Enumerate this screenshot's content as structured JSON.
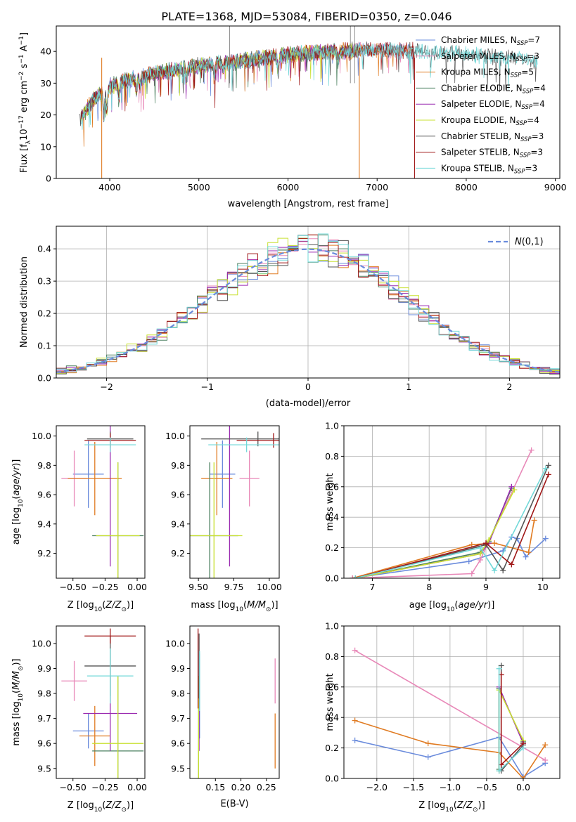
{
  "figure_title": "PLATE=1368, MJD=53084, FIBERID=0350, z=0.046",
  "colors": {
    "blue": "#6a8bdc",
    "orange": "#e07b22",
    "green": "#4c8060",
    "purple": "#9a2ab0",
    "yellowgreen": "#c8e030",
    "gray": "#555555",
    "darkred": "#a01818",
    "cyan": "#72d8d8",
    "pink": "#e888b8",
    "normal": "#6a8bdc"
  },
  "chart_data": [
    {
      "id": "spectrum",
      "type": "line",
      "title": "PLATE=1368, MJD=53084, FIBERID=0350, z=0.046",
      "xlabel": "wavelength [Angstrom, rest frame]",
      "ylabel": "Flux [f_λ10^-17 erg cm^-2 s^-1 A^-1]",
      "xlim": [
        3400,
        9050
      ],
      "ylim": [
        0,
        48
      ],
      "xticks": [
        4000,
        5000,
        6000,
        7000,
        8000,
        9000
      ],
      "yticks": [
        0,
        10,
        20,
        30,
        40
      ],
      "grid": false,
      "legend_position": "top-right",
      "legend": [
        {
          "label": "Chabrier MILES, N",
          "sub": "SSP",
          "suffix": "=7",
          "color": "blue"
        },
        {
          "label": "Salpeter MILES, N",
          "sub": "SSP",
          "suffix": "=3",
          "color": "pink"
        },
        {
          "label": "Kroupa MILES, N",
          "sub": "SSP",
          "suffix": "=5",
          "color": "orange"
        },
        {
          "label": "Chabrier ELODIE, N",
          "sub": "SSP",
          "suffix": "=4",
          "color": "green"
        },
        {
          "label": "Salpeter ELODIE, N",
          "sub": "SSP",
          "suffix": "=4",
          "color": "purple"
        },
        {
          "label": "Kroupa ELODIE, N",
          "sub": "SSP",
          "suffix": "=4",
          "color": "yellowgreen"
        },
        {
          "label": "Chabrier STELIB, N",
          "sub": "SSP",
          "suffix": "=3",
          "color": "gray"
        },
        {
          "label": "Salpeter STELIB, N",
          "sub": "SSP",
          "suffix": "=3",
          "color": "darkred"
        },
        {
          "label": "Kroupa STELIB, N",
          "sub": "SSP",
          "suffix": "=3",
          "color": "cyan"
        }
      ],
      "continuum": [
        [
          3650,
          17
        ],
        [
          3700,
          20
        ],
        [
          3800,
          24
        ],
        [
          3900,
          27
        ],
        [
          4000,
          29
        ],
        [
          4200,
          31
        ],
        [
          4500,
          33
        ],
        [
          5000,
          35.5
        ],
        [
          5500,
          37
        ],
        [
          6000,
          39
        ],
        [
          6500,
          40
        ],
        [
          7000,
          40.5
        ],
        [
          7500,
          40
        ],
        [
          8000,
          39
        ],
        [
          8500,
          38
        ],
        [
          8800,
          37
        ]
      ],
      "series": [
        {
          "name": "Chabrier MILES",
          "color": "blue",
          "range": [
            3680,
            7400
          ]
        },
        {
          "name": "Salpeter MILES",
          "color": "pink",
          "range": [
            3680,
            7400
          ]
        },
        {
          "name": "Kroupa MILES",
          "color": "orange",
          "range": [
            3680,
            7400
          ]
        },
        {
          "name": "Chabrier ELODIE",
          "color": "green",
          "range": [
            3680,
            6800
          ]
        },
        {
          "name": "Salpeter ELODIE",
          "color": "purple",
          "range": [
            3680,
            6800
          ]
        },
        {
          "name": "Kroupa ELODIE",
          "color": "yellowgreen",
          "range": [
            3680,
            6800
          ]
        },
        {
          "name": "Chabrier STELIB",
          "color": "gray",
          "range": [
            3660,
            8800
          ]
        },
        {
          "name": "Salpeter STELIB",
          "color": "darkred",
          "range": [
            3680,
            7420
          ]
        },
        {
          "name": "Kroupa STELIB",
          "color": "cyan",
          "range": [
            3680,
            8800
          ]
        }
      ],
      "cutoffs": [
        {
          "x": 3910,
          "color": "orange"
        },
        {
          "x": 6800,
          "color": "orange"
        },
        {
          "x": 7420,
          "color": "darkred"
        }
      ]
    },
    {
      "id": "residuals",
      "type": "histogram",
      "xlabel": "(data-model)/error",
      "ylabel": "Normed distribution",
      "xlim": [
        -2.5,
        2.5
      ],
      "ylim": [
        0,
        0.47
      ],
      "xticks": [
        -2,
        -1,
        0,
        1,
        2
      ],
      "yticks": [
        0.0,
        0.1,
        0.2,
        0.3,
        0.4
      ],
      "grid": true,
      "bin_width": 0.1,
      "legend_position": "top-right",
      "normal_label": "N(0,1)",
      "series_colors": [
        "blue",
        "pink",
        "orange",
        "green",
        "purple",
        "yellowgreen",
        "gray",
        "darkred",
        "cyan"
      ]
    },
    {
      "id": "age_vs_Z",
      "type": "errorbar",
      "xlabel": "Z [log10(Z/Z⊙)]",
      "ylabel": "age [log10(age/yr)]",
      "xlim": [
        -0.63,
        0.06
      ],
      "ylim": [
        9.03,
        10.07
      ],
      "xticks": [
        -0.5,
        -0.25,
        0.0
      ],
      "ytickvals": [
        9.2,
        9.4,
        9.6,
        9.8,
        10.0
      ],
      "grid": false,
      "points": [
        {
          "color": "blue",
          "x": -0.38,
          "xerr": 0.12,
          "y": 9.74,
          "yerr": 0.23
        },
        {
          "color": "pink",
          "x": -0.49,
          "xerr": 0.1,
          "y": 9.71,
          "yerr": 0.19
        },
        {
          "color": "orange",
          "x": -0.33,
          "xerr": 0.21,
          "y": 9.71,
          "yerr": 0.25
        },
        {
          "color": "green",
          "x": -0.15,
          "xerr": 0.2,
          "y": 9.32,
          "yerr": 0.5
        },
        {
          "color": "purple",
          "x": -0.21,
          "xerr": 0.0,
          "y": 9.61,
          "yerr": 0.5
        },
        {
          "color": "yellowgreen",
          "x": -0.15,
          "xerr": 0.17,
          "y": 9.32,
          "yerr": 0.5
        },
        {
          "color": "gray",
          "x": -0.21,
          "xerr": 0.18,
          "y": 9.98,
          "yerr": 0.05
        },
        {
          "color": "darkred",
          "x": -0.21,
          "xerr": 0.2,
          "y": 9.97,
          "yerr": 0.05
        },
        {
          "color": "cyan",
          "x": -0.21,
          "xerr": 0.2,
          "y": 9.94,
          "yerr": 0.05
        }
      ]
    },
    {
      "id": "age_vs_mass",
      "type": "errorbar",
      "xlabel": "mass [log10(M/M⊙)]",
      "ylabel": "",
      "xlim": [
        9.44,
        10.07
      ],
      "ylim": [
        9.03,
        10.07
      ],
      "xticks": [
        9.5,
        9.75,
        10.0
      ],
      "ytickvals": [
        9.2,
        9.4,
        9.6,
        9.8,
        10.0
      ],
      "grid": false,
      "points": [
        {
          "color": "blue",
          "x": 9.67,
          "xerr": 0.09,
          "y": 9.74,
          "yerr": 0.23
        },
        {
          "color": "pink",
          "x": 9.86,
          "xerr": 0.07,
          "y": 9.71,
          "yerr": 0.19
        },
        {
          "color": "orange",
          "x": 9.63,
          "xerr": 0.11,
          "y": 9.71,
          "yerr": 0.25
        },
        {
          "color": "green",
          "x": 9.58,
          "xerr": 0.2,
          "y": 9.32,
          "yerr": 0.5
        },
        {
          "color": "purple",
          "x": 9.72,
          "xerr": 0.0,
          "y": 9.61,
          "yerr": 0.5
        },
        {
          "color": "yellowgreen",
          "x": 9.61,
          "xerr": 0.2,
          "y": 9.32,
          "yerr": 0.5
        },
        {
          "color": "gray",
          "x": 9.92,
          "xerr": 0.4,
          "y": 9.98,
          "yerr": 0.05
        },
        {
          "color": "darkred",
          "x": 10.03,
          "xerr": 0.26,
          "y": 9.97,
          "yerr": 0.05
        },
        {
          "color": "cyan",
          "x": 9.84,
          "xerr": 0.27,
          "y": 9.94,
          "yerr": 0.05
        }
      ]
    },
    {
      "id": "mw_vs_age",
      "type": "line",
      "xlabel": "age [log10(age/yr)]",
      "ylabel": "mass weight",
      "xlim": [
        6.5,
        10.3
      ],
      "ylim": [
        0,
        1.0
      ],
      "xticks": [
        7,
        8,
        9,
        10
      ],
      "yticks": [
        0.0,
        0.2,
        0.4,
        0.6,
        0.8,
        1.0
      ],
      "grid": true,
      "series": [
        {
          "color": "blue",
          "x": [
            6.65,
            8.7,
            9.3,
            9.45,
            9.55,
            9.7,
            10.05
          ],
          "y": [
            0.0,
            0.11,
            0.18,
            0.27,
            0.26,
            0.14,
            0.26
          ]
        },
        {
          "color": "orange",
          "x": [
            6.65,
            8.75,
            9.15,
            9.75,
            9.85
          ],
          "y": [
            0.0,
            0.22,
            0.23,
            0.17,
            0.38
          ]
        },
        {
          "color": "pink",
          "x": [
            6.65,
            8.75,
            8.9,
            9.8
          ],
          "y": [
            0.0,
            0.03,
            0.12,
            0.84
          ]
        },
        {
          "color": "green",
          "x": [
            6.7,
            8.9,
            9.05,
            9.45
          ],
          "y": [
            0.0,
            0.17,
            0.24,
            0.59
          ]
        },
        {
          "color": "purple",
          "x": [
            6.7,
            8.9,
            9.05,
            9.45
          ],
          "y": [
            0.0,
            0.16,
            0.23,
            0.6
          ]
        },
        {
          "color": "yellowgreen",
          "x": [
            6.7,
            8.9,
            9.05,
            9.5
          ],
          "y": [
            0.0,
            0.16,
            0.25,
            0.58
          ]
        },
        {
          "color": "gray",
          "x": [
            6.7,
            9.0,
            9.3,
            10.1
          ],
          "y": [
            0.0,
            0.22,
            0.05,
            0.74
          ]
        },
        {
          "color": "darkred",
          "x": [
            6.7,
            9.0,
            9.45,
            10.1
          ],
          "y": [
            0.0,
            0.23,
            0.09,
            0.68
          ]
        },
        {
          "color": "cyan",
          "x": [
            6.7,
            8.9,
            9.15,
            10.05
          ],
          "y": [
            0.0,
            0.2,
            0.05,
            0.72
          ]
        }
      ]
    },
    {
      "id": "mass_vs_Z",
      "type": "errorbar",
      "xlabel": "Z [log10(Z/Z⊙)]",
      "ylabel": "mass [log10(M/M⊙)]",
      "xlim": [
        -0.63,
        0.06
      ],
      "ylim": [
        9.46,
        10.07
      ],
      "xticks": [
        -0.5,
        -0.25,
        0.0
      ],
      "ytickvals": [
        9.5,
        9.6,
        9.7,
        9.8,
        9.9,
        10.0
      ],
      "grid": false,
      "points": [
        {
          "color": "blue",
          "x": -0.38,
          "xerr": 0.12,
          "y": 9.65,
          "yerr": 0.07
        },
        {
          "color": "pink",
          "x": -0.49,
          "xerr": 0.1,
          "y": 9.85,
          "yerr": 0.08
        },
        {
          "color": "orange",
          "x": -0.33,
          "xerr": 0.12,
          "y": 9.63,
          "yerr": 0.12
        },
        {
          "color": "green",
          "x": -0.15,
          "xerr": 0.2,
          "y": 9.57,
          "yerr": 0.3
        },
        {
          "color": "purple",
          "x": -0.21,
          "xerr": 0.21,
          "y": 9.72,
          "yerr": 0.15
        },
        {
          "color": "yellowgreen",
          "x": -0.15,
          "xerr": 0.2,
          "y": 9.6,
          "yerr": 0.27
        },
        {
          "color": "gray",
          "x": -0.21,
          "xerr": 0.2,
          "y": 9.91,
          "yerr": 0.12
        },
        {
          "color": "darkred",
          "x": -0.21,
          "xerr": 0.2,
          "y": 10.03,
          "yerr": 0.03
        },
        {
          "color": "cyan",
          "x": -0.21,
          "xerr": 0.18,
          "y": 9.87,
          "yerr": 0.11
        }
      ]
    },
    {
      "id": "mass_vs_ebv",
      "type": "errorbar",
      "xlabel": "E(B-V)",
      "ylabel": "",
      "xlim": [
        0.1,
        0.275
      ],
      "ylim": [
        9.46,
        10.07
      ],
      "xticks": [
        0.15,
        0.2,
        0.25
      ],
      "ytickvals": [
        9.5,
        9.6,
        9.7,
        9.8,
        9.9,
        10.0
      ],
      "grid": false,
      "points": [
        {
          "color": "blue",
          "x": 0.119,
          "xerr": 0.0,
          "y": 9.79,
          "yerr": 0.17
        },
        {
          "color": "pink",
          "x": 0.267,
          "xerr": 0.0,
          "y": 9.85,
          "yerr": 0.09
        },
        {
          "color": "orange",
          "x": 0.267,
          "xerr": 0.0,
          "y": 9.61,
          "yerr": 0.11
        },
        {
          "color": "green",
          "x": 0.117,
          "xerr": 0.0,
          "y": 9.57,
          "yerr": 0.3
        },
        {
          "color": "purple",
          "x": 0.118,
          "xerr": 0.0,
          "y": 9.72,
          "yerr": 0.15
        },
        {
          "color": "yellowgreen",
          "x": 0.117,
          "xerr": 0.0,
          "y": 9.6,
          "yerr": 0.27
        },
        {
          "color": "gray",
          "x": 0.118,
          "xerr": 0.0,
          "y": 9.91,
          "yerr": 0.13
        },
        {
          "color": "darkred",
          "x": 0.116,
          "xerr": 0.0,
          "y": 9.9,
          "yerr": 0.16
        },
        {
          "color": "cyan",
          "x": 0.119,
          "xerr": 0.0,
          "y": 9.85,
          "yerr": 0.12
        }
      ]
    },
    {
      "id": "mw_vs_Z",
      "type": "line",
      "xlabel": "Z [log10(Z/Z⊙)]",
      "ylabel": "mass weight",
      "xlim": [
        -2.45,
        0.5
      ],
      "ylim": [
        0,
        1.0
      ],
      "xticks": [
        -2.0,
        -1.5,
        -1.0,
        -0.5,
        0.0
      ],
      "yticks": [
        0.0,
        0.2,
        0.4,
        0.6,
        0.8,
        1.0
      ],
      "grid": true,
      "series": [
        {
          "color": "blue",
          "x": [
            -2.3,
            -1.3,
            -0.33,
            0.0,
            0.3
          ],
          "y": [
            0.25,
            0.14,
            0.27,
            0.01,
            0.1
          ]
        },
        {
          "color": "orange",
          "x": [
            -2.3,
            -1.3,
            -0.33,
            0.0,
            0.3
          ],
          "y": [
            0.38,
            0.23,
            0.17,
            0.0,
            0.22
          ]
        },
        {
          "color": "pink",
          "x": [
            -2.3,
            0.3
          ],
          "y": [
            0.84,
            0.12
          ]
        },
        {
          "color": "green",
          "x": [
            -0.33,
            -0.33,
            0.0
          ],
          "y": [
            0.06,
            0.59,
            0.24
          ]
        },
        {
          "color": "purple",
          "x": [
            -0.33,
            -0.33,
            0.0
          ],
          "y": [
            0.05,
            0.6,
            0.23
          ]
        },
        {
          "color": "yellowgreen",
          "x": [
            -0.33,
            -0.33,
            0.0
          ],
          "y": [
            0.05,
            0.58,
            0.25
          ]
        },
        {
          "color": "gray",
          "x": [
            -0.3,
            -0.3,
            0.0
          ],
          "y": [
            0.74,
            0.05,
            0.22
          ]
        },
        {
          "color": "darkred",
          "x": [
            -0.3,
            -0.3,
            0.0
          ],
          "y": [
            0.68,
            0.09,
            0.23
          ]
        },
        {
          "color": "cyan",
          "x": [
            -0.33,
            -0.33,
            0.0
          ],
          "y": [
            0.72,
            0.05,
            0.2
          ]
        }
      ]
    }
  ]
}
